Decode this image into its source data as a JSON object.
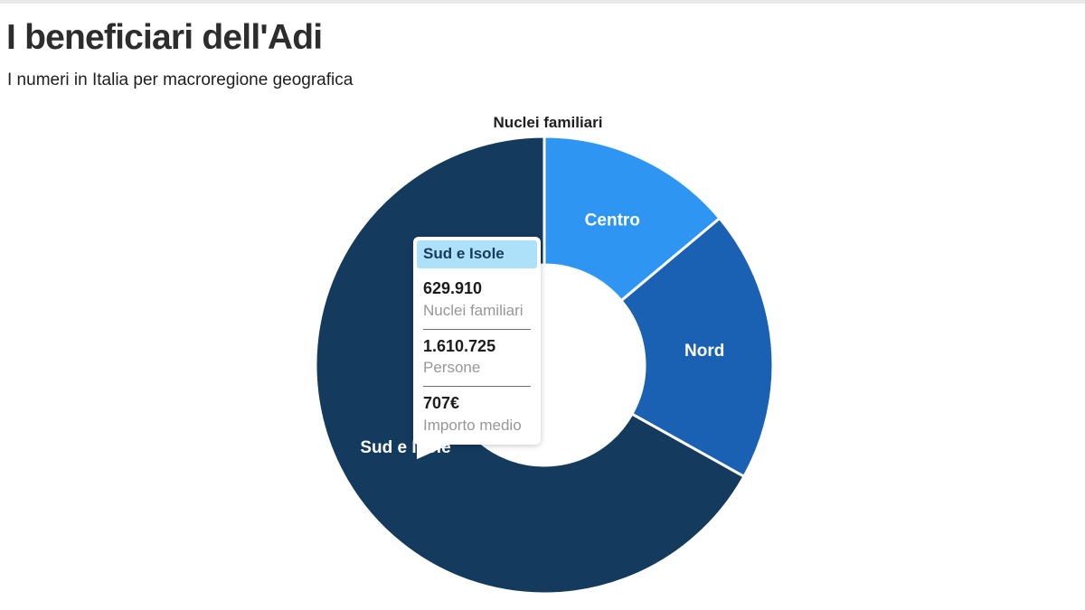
{
  "page": {
    "title": "I beneficiari dell'Adi",
    "subtitle": "I numeri in Italia per macroregione geografica"
  },
  "chart_data": {
    "type": "pie",
    "variant": "donut",
    "title": "Nuclei familiari",
    "start_angle_deg": 0,
    "inner_radius_ratio": 0.44,
    "legend_position": "labels-inside-slices",
    "segments": [
      {
        "label": "Centro",
        "share_pct_est": 13.9,
        "color": "#2e95f2"
      },
      {
        "label": "Nord",
        "share_pct_est": 19.2,
        "color": "#1a61b3"
      },
      {
        "label": "Sud e Isole",
        "share_pct_est": 66.9,
        "color": "#143a5e",
        "nuclei_familiari": "629.910",
        "persone": "1.610.725",
        "importo_medio": "707€"
      }
    ]
  },
  "tooltip": {
    "title": "Sud e Isole",
    "rows": [
      {
        "value": "629.910",
        "label": "Nuclei familiari"
      },
      {
        "value": "1.610.725",
        "label": "Persone"
      },
      {
        "value": "707€",
        "label": "Importo medio"
      }
    ]
  },
  "colors": {
    "centro": "#2e95f2",
    "nord": "#1a61b3",
    "sud_e_isole": "#143a5e",
    "tooltip_header_bg": "#ade0f9",
    "tooltip_header_text": "#16395f",
    "title_text": "#2d2d2d",
    "muted_label": "#979797"
  }
}
